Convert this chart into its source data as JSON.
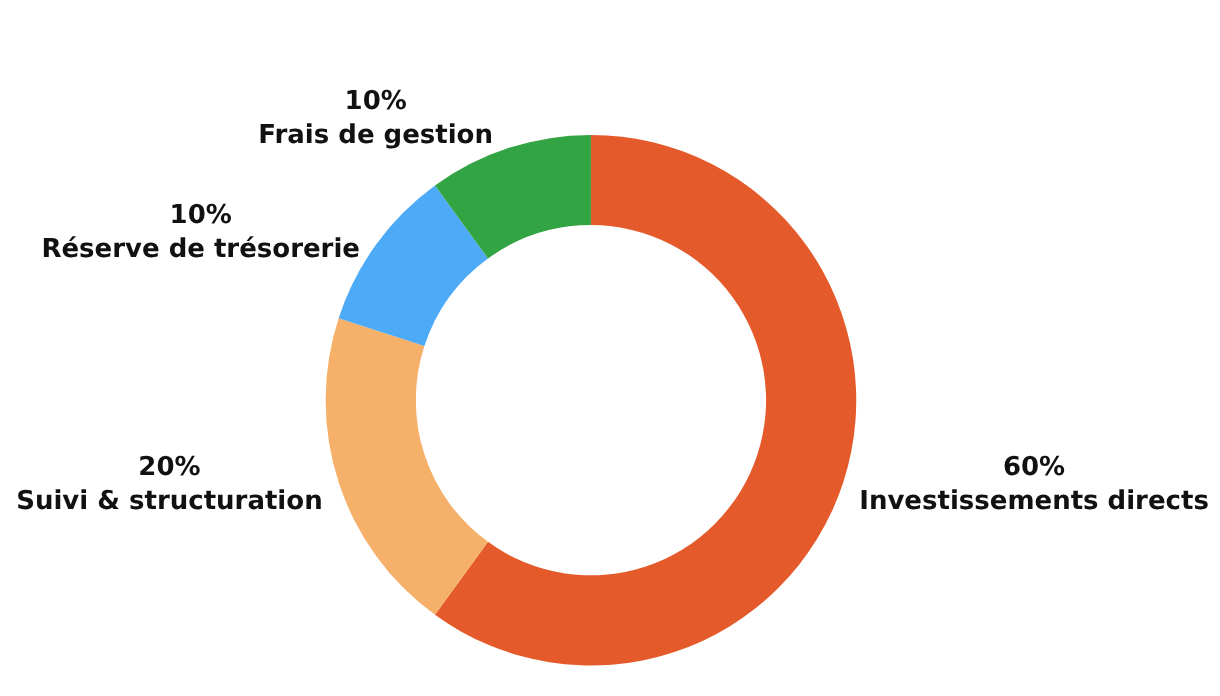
{
  "chart_data": {
    "type": "donut",
    "categories": [
      "Investissements directs",
      "Suivi & structuration",
      "Réserve de trésorerie",
      "Frais de gestion"
    ],
    "values": [
      60,
      20,
      10,
      10
    ],
    "value_labels": [
      "60%",
      "20%",
      "10%",
      "10%"
    ],
    "colors": [
      "#e55a2b",
      "#f5b06a",
      "#4daaf7",
      "#33a444"
    ],
    "legend": false
  }
}
